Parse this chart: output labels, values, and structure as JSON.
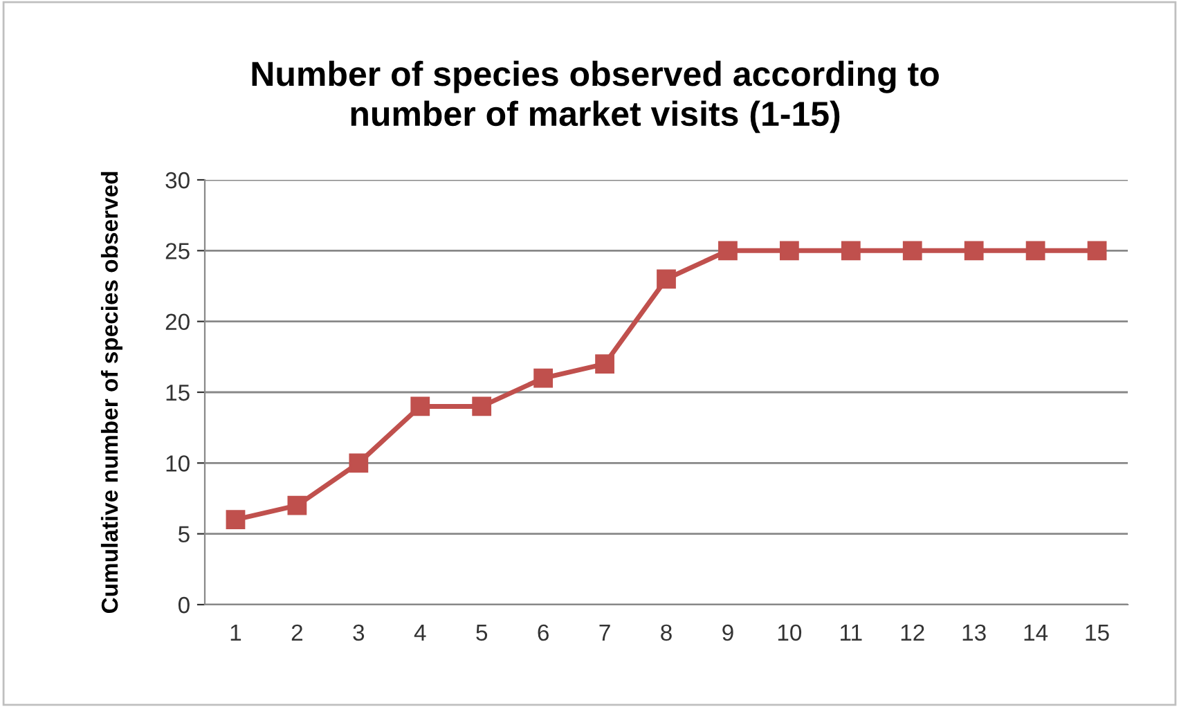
{
  "chart_data": {
    "type": "line",
    "title": "Number of species observed according to\nnumber of market visits (1-15)",
    "ylabel": "Cumulative number of species observed",
    "categories": [
      "1",
      "2",
      "3",
      "4",
      "5",
      "6",
      "7",
      "8",
      "9",
      "10",
      "11",
      "12",
      "13",
      "14",
      "15"
    ],
    "series": [
      {
        "color": "#c0504d",
        "values": [
          6,
          7,
          10,
          14,
          14,
          16,
          17,
          23,
          25,
          25,
          25,
          25,
          25,
          25,
          25
        ]
      }
    ],
    "ylim": [
      0,
      30
    ],
    "yticks": [
      0,
      5,
      10,
      15,
      20,
      25,
      30
    ],
    "grid": "y",
    "marker": "square",
    "line_style": "solid",
    "legend": false
  }
}
